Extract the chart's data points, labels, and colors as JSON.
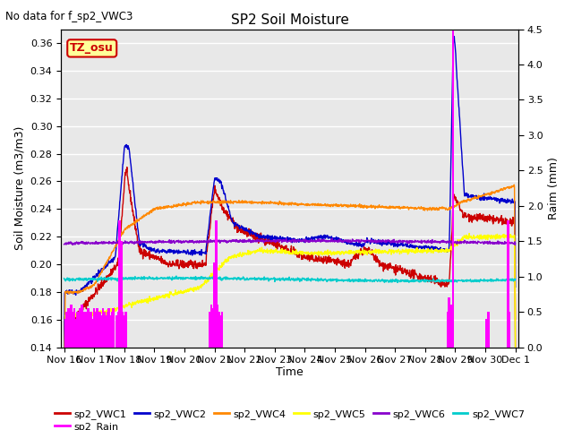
{
  "title": "SP2 Soil Moisture",
  "subtitle": "No data for f_sp2_VWC3",
  "ylabel_left": "Soil Moisture (m3/m3)",
  "ylabel_right": "Raim (mm)",
  "xlabel": "Time",
  "ylim_left": [
    0.14,
    0.37
  ],
  "ylim_right": [
    0.0,
    4.5
  ],
  "yticks_left": [
    0.14,
    0.16,
    0.18,
    0.2,
    0.22,
    0.24,
    0.26,
    0.28,
    0.3,
    0.32,
    0.34,
    0.36
  ],
  "yticks_right": [
    0.0,
    0.5,
    1.0,
    1.5,
    2.0,
    2.5,
    3.0,
    3.5,
    4.0,
    4.5
  ],
  "bg_color": "#e8e8e8",
  "colors": {
    "VWC1": "#cc0000",
    "VWC2": "#0000cc",
    "VWC4": "#ff8800",
    "VWC5": "#ffff00",
    "VWC6": "#8800cc",
    "VWC7": "#00cccc",
    "Rain": "#ff00ff"
  },
  "tz_box_facecolor": "#ffff99",
  "tz_text_color": "#cc0000",
  "tz_border_color": "#cc0000",
  "day_labels": [
    "Nov 16",
    "Nov 17",
    "Nov 18",
    "Nov 19",
    "Nov 20",
    "Nov 21",
    "Nov 22",
    "Nov 23",
    "Nov 24",
    "Nov 25",
    "Nov 26",
    "Nov 27",
    "Nov 28",
    "Nov 29",
    "Nov 30",
    "Dec 1"
  ],
  "n_points": 1500
}
